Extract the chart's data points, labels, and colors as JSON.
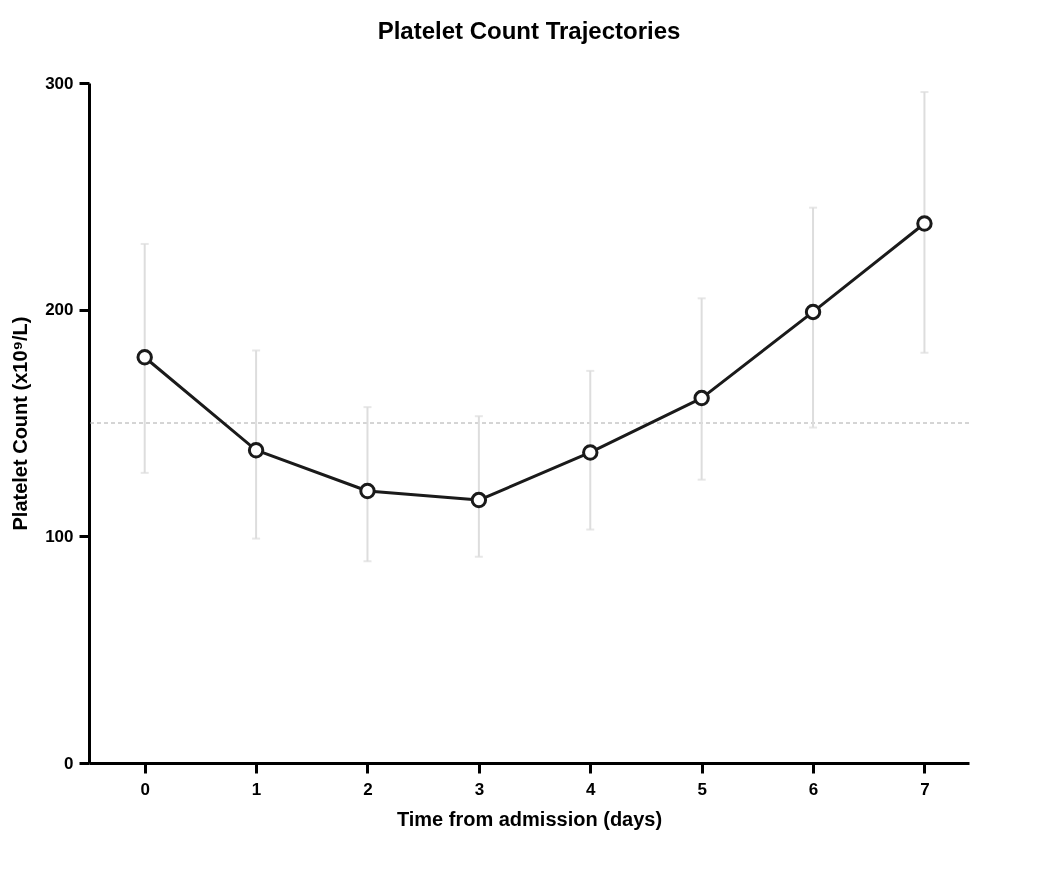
{
  "chart_data": {
    "type": "line",
    "title": "Platelet Count Trajectories",
    "xlabel": "Time from admission (days)",
    "ylabel": "Platelet Count (x10⁹/L)",
    "x": [
      0,
      1,
      2,
      3,
      4,
      5,
      6,
      7
    ],
    "series": [
      {
        "color": "#1a1a1a",
        "values": [
          179,
          138,
          120,
          116,
          137,
          161,
          199,
          238
        ],
        "errors": [
          [
            128,
            229
          ],
          [
            99,
            182
          ],
          [
            89,
            157
          ],
          [
            91,
            153
          ],
          [
            103,
            173
          ],
          [
            125,
            205
          ],
          [
            148,
            245
          ],
          [
            181,
            296
          ]
        ]
      }
    ],
    "xlim": [
      -0.5,
      7.4
    ],
    "xticks": [
      0,
      1,
      2,
      3,
      4,
      5,
      6,
      7
    ],
    "ylim": [
      0,
      300
    ],
    "yticks": [
      0,
      100,
      200,
      300
    ],
    "ref_lines": [
      {
        "axis": "y",
        "value": 150,
        "color": "#aaaaaa",
        "line_style": "dashed"
      }
    ],
    "marker": "circle",
    "line_style": "solid",
    "grid": false
  }
}
